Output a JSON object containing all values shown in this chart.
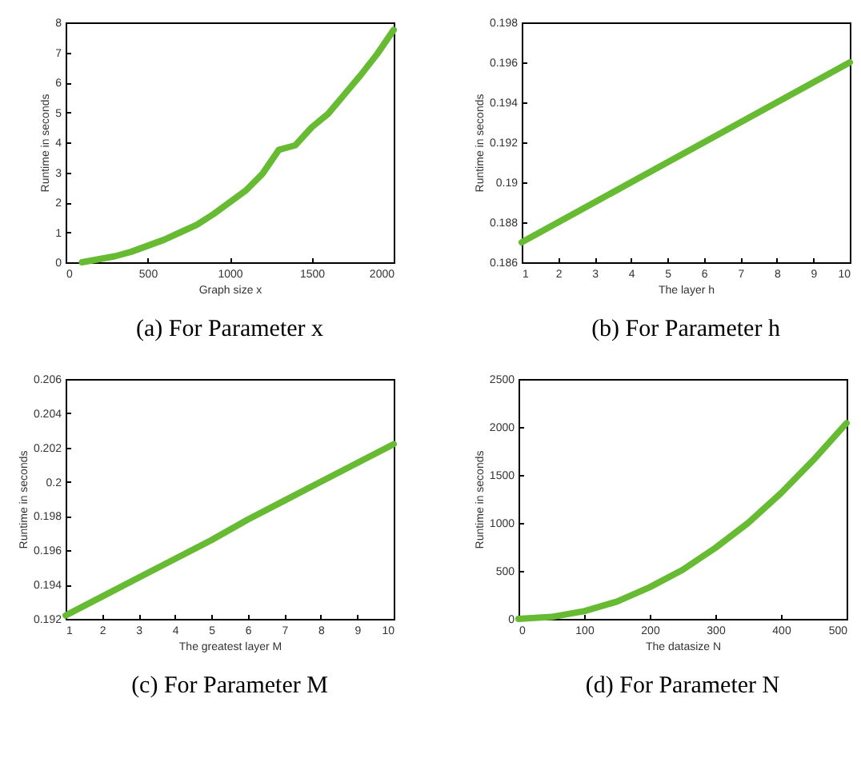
{
  "chart_data": [
    {
      "type": "line",
      "title": "(a) For Parameter x",
      "xlabel": "Graph size x",
      "ylabel": "Runtime in seconds",
      "x": [
        100,
        200,
        300,
        400,
        500,
        600,
        700,
        800,
        900,
        1000,
        1100,
        1200,
        1300,
        1400,
        1500,
        1600,
        1700,
        1800,
        1900,
        2000
      ],
      "series": [
        {
          "color": "#66bb33",
          "values": [
            0,
            0.1,
            0.2,
            0.35,
            0.55,
            0.75,
            1.0,
            1.25,
            1.6,
            2.0,
            2.4,
            2.95,
            3.75,
            3.9,
            4.5,
            4.95,
            5.6,
            6.25,
            6.95,
            7.75
          ]
        }
      ],
      "xlim": [
        0,
        2000
      ],
      "xticks": [
        0,
        500,
        1000,
        1500,
        2000
      ],
      "ylim": [
        0,
        8
      ],
      "yticks": [
        0,
        1,
        2,
        3,
        4,
        5,
        6,
        7,
        8
      ],
      "grid": false
    },
    {
      "type": "line",
      "title": "(b) For Parameter h",
      "xlabel": "The layer h",
      "ylabel": "Runtime in seconds",
      "x": [
        1,
        2,
        3,
        4,
        5,
        6,
        7,
        8,
        9,
        10
      ],
      "series": [
        {
          "color": "#66bb33",
          "values": [
            0.187,
            0.188,
            0.189,
            0.19,
            0.191,
            0.192,
            0.193,
            0.194,
            0.195,
            0.196
          ]
        }
      ],
      "xlim": [
        1,
        10
      ],
      "xticks": [
        1,
        2,
        3,
        4,
        5,
        6,
        7,
        8,
        9,
        10
      ],
      "ylim": [
        0.186,
        0.198
      ],
      "yticks": [
        0.186,
        0.188,
        0.19,
        0.192,
        0.194,
        0.196,
        0.198
      ],
      "grid": false
    },
    {
      "type": "line",
      "title": "(c) For Parameter M",
      "xlabel": "The greatest layer M",
      "ylabel": "Runtime in seconds",
      "x": [
        1,
        2,
        3,
        4,
        5,
        6,
        7,
        8,
        9,
        10
      ],
      "series": [
        {
          "color": "#66bb33",
          "values": [
            0.1922,
            0.1933,
            0.1944,
            0.1955,
            0.1966,
            0.1978,
            0.1989,
            0.2,
            0.2011,
            0.2022
          ]
        }
      ],
      "xlim": [
        1,
        10
      ],
      "xticks": [
        1,
        2,
        3,
        4,
        5,
        6,
        7,
        8,
        9,
        10
      ],
      "ylim": [
        0.192,
        0.206
      ],
      "yticks": [
        0.192,
        0.194,
        0.196,
        0.198,
        0.2,
        0.202,
        0.204,
        0.206
      ],
      "grid": false
    },
    {
      "type": "line",
      "title": "(d) For Parameter N",
      "xlabel": "The datasize N",
      "ylabel": "Runtime in seconds",
      "x": [
        0,
        50,
        100,
        150,
        200,
        250,
        300,
        350,
        400,
        450,
        500
      ],
      "series": [
        {
          "color": "#66bb33",
          "values": [
            0,
            20,
            80,
            180,
            330,
            510,
            740,
            1000,
            1310,
            1660,
            2040
          ]
        }
      ],
      "xlim": [
        0,
        500
      ],
      "xticks": [
        0,
        100,
        200,
        300,
        400,
        500
      ],
      "ylim": [
        0,
        2500
      ],
      "yticks": [
        0,
        500,
        1000,
        1500,
        2000,
        2500
      ],
      "grid": false
    }
  ]
}
